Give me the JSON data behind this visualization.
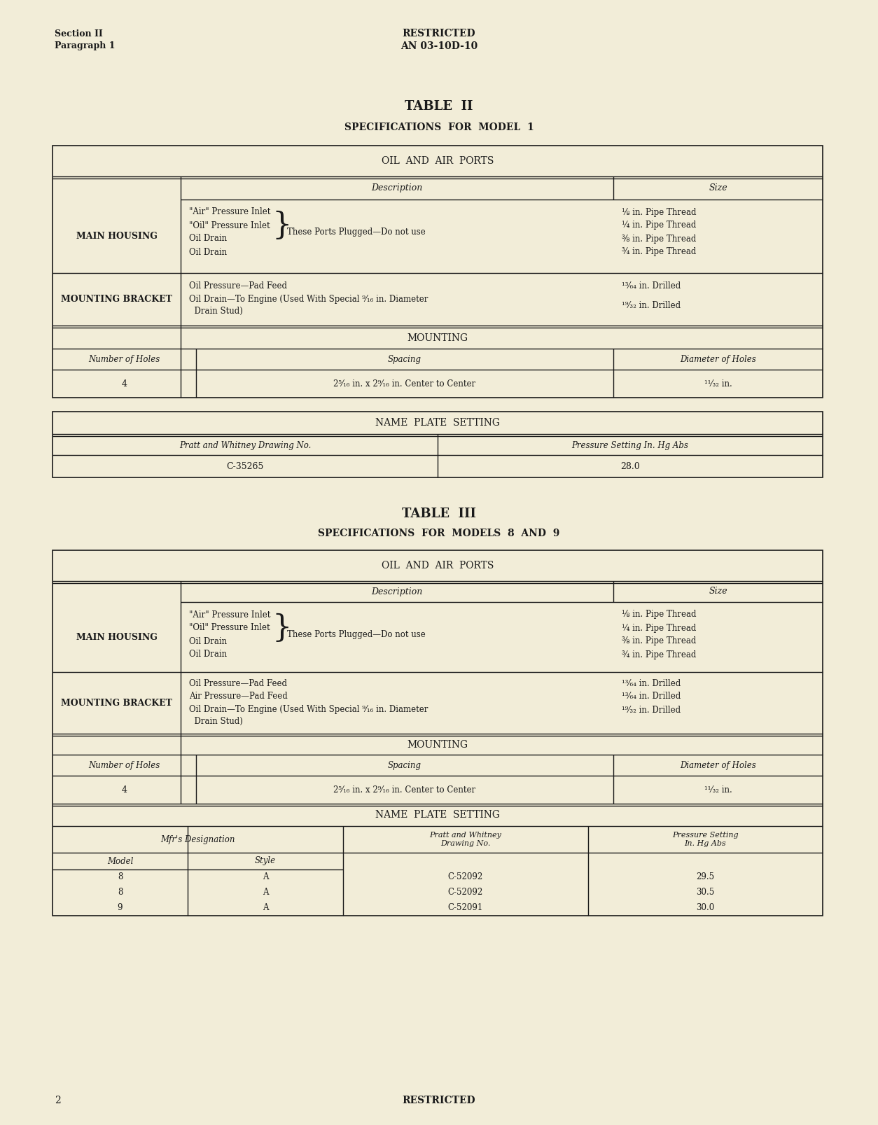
{
  "bg_color": "#f2edd8",
  "text_color": "#1a1a1a",
  "page_num": "2",
  "header_left_line1": "Section II",
  "header_left_line2": "Paragraph 1",
  "header_center_line1": "RESTRICTED",
  "header_center_line2": "AN 03-10D-10",
  "footer_center": "RESTRICTED",
  "table2_title": "TABLE  II",
  "table2_subtitle": "SPECIFICATIONS  FOR  MODEL  1",
  "table3_title": "TABLE  III",
  "table3_subtitle": "SPECIFICATIONS  FOR  MODELS  8  AND  9",
  "section_oil_air": "OIL  AND  AIR  PORTS",
  "section_mounting": "MOUNTING",
  "section_name_plate": "NAME  PLATE  SETTING",
  "col_description": "Description",
  "col_size": "Size",
  "col_number_holes": "Number of Holes",
  "col_spacing": "Spacing",
  "col_diameter_holes": "Diameter of Holes",
  "main_housing_label": "MAIN HOUSING",
  "mounting_bracket_label": "MOUNTING BRACKET",
  "t2_mh_desc_line1": "\"Air\" Pressure Inlet",
  "t2_mh_desc_line2": "\"Oil\" Pressure Inlet",
  "t2_mh_desc_line3": "Oil Drain",
  "t2_mh_desc_line4": "Oil Drain",
  "t2_mh_plugged": "These Ports Plugged—Do not use",
  "t2_mh_size1": "⅛ in. Pipe Thread",
  "t2_mh_size2": "¼ in. Pipe Thread",
  "t2_mh_size3": "⅜ in. Pipe Thread",
  "t2_mh_size4": "¾ in. Pipe Thread",
  "t2_mb_desc1": "Oil Pressure—Pad Feed",
  "t2_mb_desc2": "Oil Drain—To Engine (Used With Special ⁹⁄₁₆ in. Diameter",
  "t2_mb_desc2b": "  Drain Stud)",
  "t2_mb_size1": "¹³⁄₆₄ in. Drilled",
  "t2_mb_size2": "¹⁹⁄₃₂ in. Drilled",
  "t2_mount_holes": "4",
  "t2_mount_spacing": "2⁵⁄₁₆ in. x 2⁹⁄₁₆ in. Center to Center",
  "t2_mount_diam": "¹¹⁄₃₂ in.",
  "t2_pw_draw": "Pratt and Whitney Drawing No.",
  "t2_press_set": "Pressure Setting In. Hg Abs",
  "t2_draw_num": "C-35265",
  "t2_press_val": "28.0",
  "t3_mh_desc_line1": "\"Air\" Pressure Inlet",
  "t3_mh_desc_line2": "\"Oil\" Pressure Inlet",
  "t3_mh_desc_line3": "Oil Drain",
  "t3_mh_desc_line4": "Oil Drain",
  "t3_mh_plugged": "These Ports Plugged—Do not use",
  "t3_mh_size1": "⅛ in. Pipe Thread",
  "t3_mh_size2": "¼ in. Pipe Thread",
  "t3_mh_size3": "⅜ in. Pipe Thread",
  "t3_mh_size4": "¾ in. Pipe Thread",
  "t3_mb_desc1": "Oil Pressure—Pad Feed",
  "t3_mb_desc2": "Air Pressure—Pad Feed",
  "t3_mb_desc3": "Oil Drain—To Engine (Used With Special ⁹⁄₁₆ in. Diameter",
  "t3_mb_desc3b": "  Drain Stud)",
  "t3_mb_size1": "¹³⁄₆₄ in. Drilled",
  "t3_mb_size2": "¹³⁄₆₄ in. Drilled",
  "t3_mb_size3": "¹⁹⁄₃₂ in. Drilled",
  "t3_mount_holes": "4",
  "t3_mount_spacing": "2⁵⁄₁₆ in. x 2⁹⁄₁₆ in. Center to Center",
  "t3_mount_diam": "¹¹⁄₃₂ in.",
  "t3_mfr_desig": "Mfr's Designation",
  "t3_pw_draw_col": "Pratt and Whitney\nDrawing No.",
  "t3_press_set_col": "Pressure Setting\nIn. Hg Abs",
  "t3_col_model": "Model",
  "t3_col_style": "Style",
  "t3_rows": [
    {
      "model": "8",
      "style": "A",
      "drawing": "C-52092",
      "pressure": "29.5"
    },
    {
      "model": "8",
      "style": "A",
      "drawing": "C-52092",
      "pressure": "30.5"
    },
    {
      "model": "9",
      "style": "A",
      "drawing": "C-52091",
      "pressure": "30.0"
    }
  ]
}
